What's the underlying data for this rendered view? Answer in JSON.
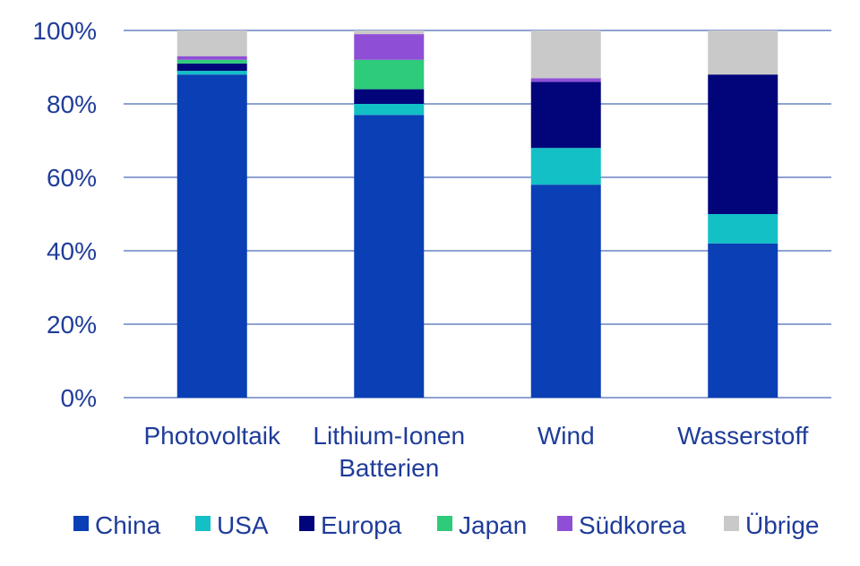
{
  "chart_data": {
    "type": "bar",
    "stacked": true,
    "categories": [
      [
        "Photovoltaik"
      ],
      [
        "Lithium-Ionen",
        "Batterien"
      ],
      [
        "Wind"
      ],
      [
        "Wasserstoff"
      ]
    ],
    "series": [
      {
        "name": "China",
        "color": "#0a3fb5",
        "values": [
          88,
          77,
          58,
          42
        ]
      },
      {
        "name": "USA",
        "color": "#12c0c6",
        "values": [
          1,
          3,
          10,
          8
        ]
      },
      {
        "name": "Europa",
        "color": "#02057a",
        "values": [
          2,
          4,
          18,
          38
        ]
      },
      {
        "name": "Japan",
        "color": "#2ecb7a",
        "values": [
          1,
          8,
          0,
          0
        ]
      },
      {
        "name": "Südkorea",
        "color": "#8e4fd6",
        "values": [
          1,
          7,
          1,
          0
        ]
      },
      {
        "name": "Übrige",
        "color": "#c9c9c9",
        "values": [
          7,
          1,
          13,
          12
        ]
      }
    ],
    "yticks": [
      "0%",
      "20%",
      "40%",
      "60%",
      "80%",
      "100%"
    ],
    "ylim": [
      0,
      100
    ],
    "grid": true,
    "legend": "bottom"
  }
}
